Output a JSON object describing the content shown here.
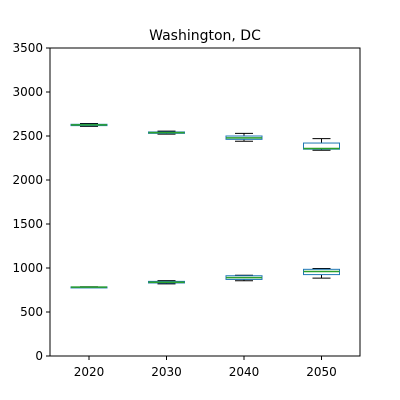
{
  "chart_data": {
    "type": "box",
    "title": "Washington, DC",
    "xlabel": "",
    "ylabel": "",
    "categories": [
      "2020",
      "2030",
      "2040",
      "2050"
    ],
    "ylim": [
      0,
      3500
    ],
    "yticks": [
      0,
      500,
      1000,
      1500,
      2000,
      2500,
      3000,
      3500
    ],
    "grid": false,
    "legend": "none",
    "colors": {
      "box": "#1f77b4",
      "median": "#2ca02c",
      "whisker": "#000000",
      "axis": "#000000"
    },
    "series": [
      {
        "values": [
          {
            "category": "2020",
            "whislo": 2610,
            "q1": 2618,
            "med": 2626,
            "q3": 2633,
            "whishi": 2642
          },
          {
            "category": "2030",
            "whislo": 2522,
            "q1": 2530,
            "med": 2538,
            "q3": 2546,
            "whishi": 2556
          },
          {
            "category": "2040",
            "whislo": 2440,
            "q1": 2462,
            "med": 2478,
            "q3": 2500,
            "whishi": 2530
          },
          {
            "category": "2050",
            "whislo": 2338,
            "q1": 2350,
            "med": 2358,
            "q3": 2420,
            "whishi": 2470
          }
        ]
      },
      {
        "values": [
          {
            "category": "2020",
            "whislo": 778,
            "q1": 780,
            "med": 782,
            "q3": 785,
            "whishi": 787
          },
          {
            "category": "2030",
            "whislo": 820,
            "q1": 830,
            "med": 838,
            "q3": 848,
            "whishi": 856
          },
          {
            "category": "2040",
            "whislo": 855,
            "q1": 870,
            "med": 890,
            "q3": 912,
            "whishi": 918
          },
          {
            "category": "2050",
            "whislo": 885,
            "q1": 925,
            "med": 960,
            "q3": 985,
            "whishi": 995
          }
        ]
      }
    ]
  }
}
